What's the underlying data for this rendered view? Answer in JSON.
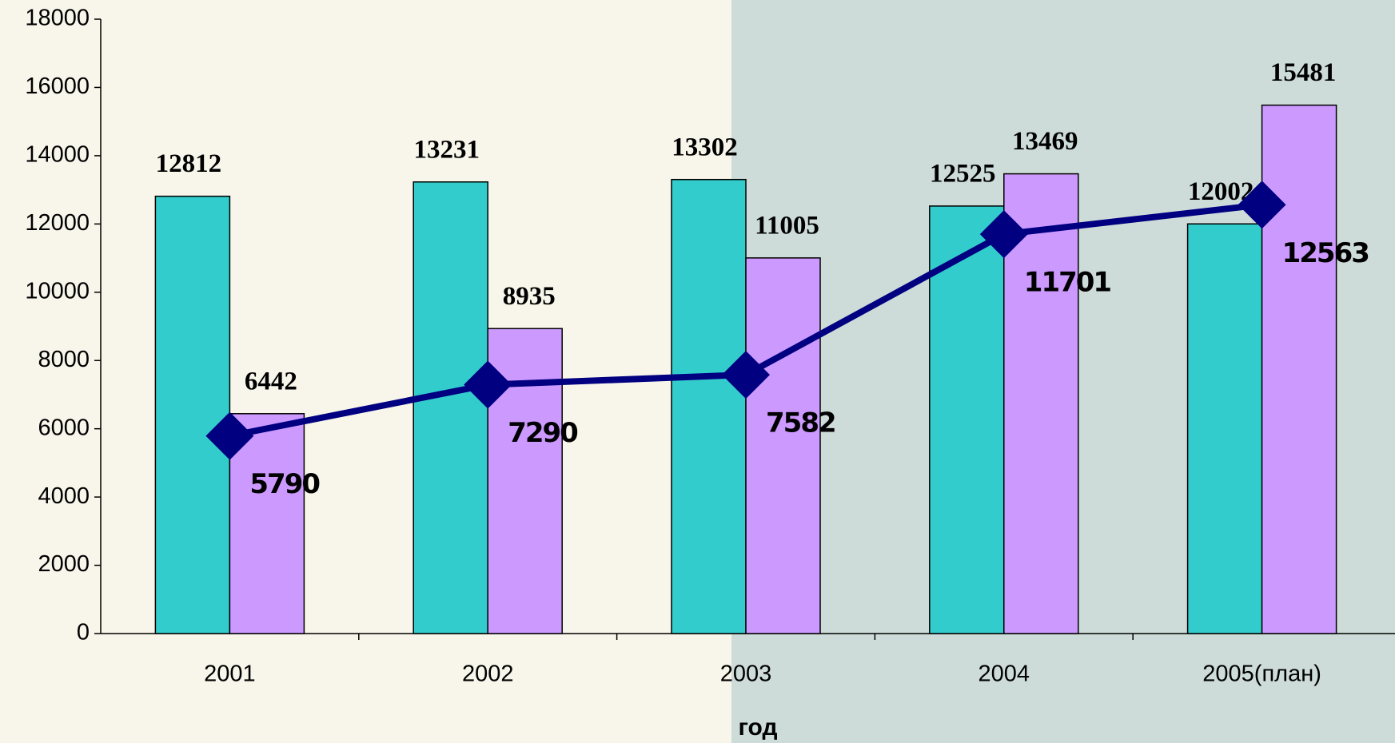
{
  "chart_data": {
    "type": "bar",
    "x_label": "год",
    "categories": [
      "2001",
      "2002",
      "2003",
      "2004",
      "2005(план)"
    ],
    "series": [
      {
        "color": "#33cccc",
        "values": [
          12812,
          13231,
          13302,
          12525,
          12002
        ]
      },
      {
        "color": "#cc99ff",
        "values": [
          6442,
          8935,
          11005,
          13469,
          15481
        ]
      },
      {
        "color": "#000080",
        "type": "line",
        "values": [
          5790,
          7290,
          7582,
          11701,
          12563
        ]
      }
    ],
    "ylim": [
      0,
      18000
    ],
    "yticks": [
      0,
      2000,
      4000,
      6000,
      8000,
      10000,
      12000,
      14000,
      16000,
      18000
    ]
  }
}
